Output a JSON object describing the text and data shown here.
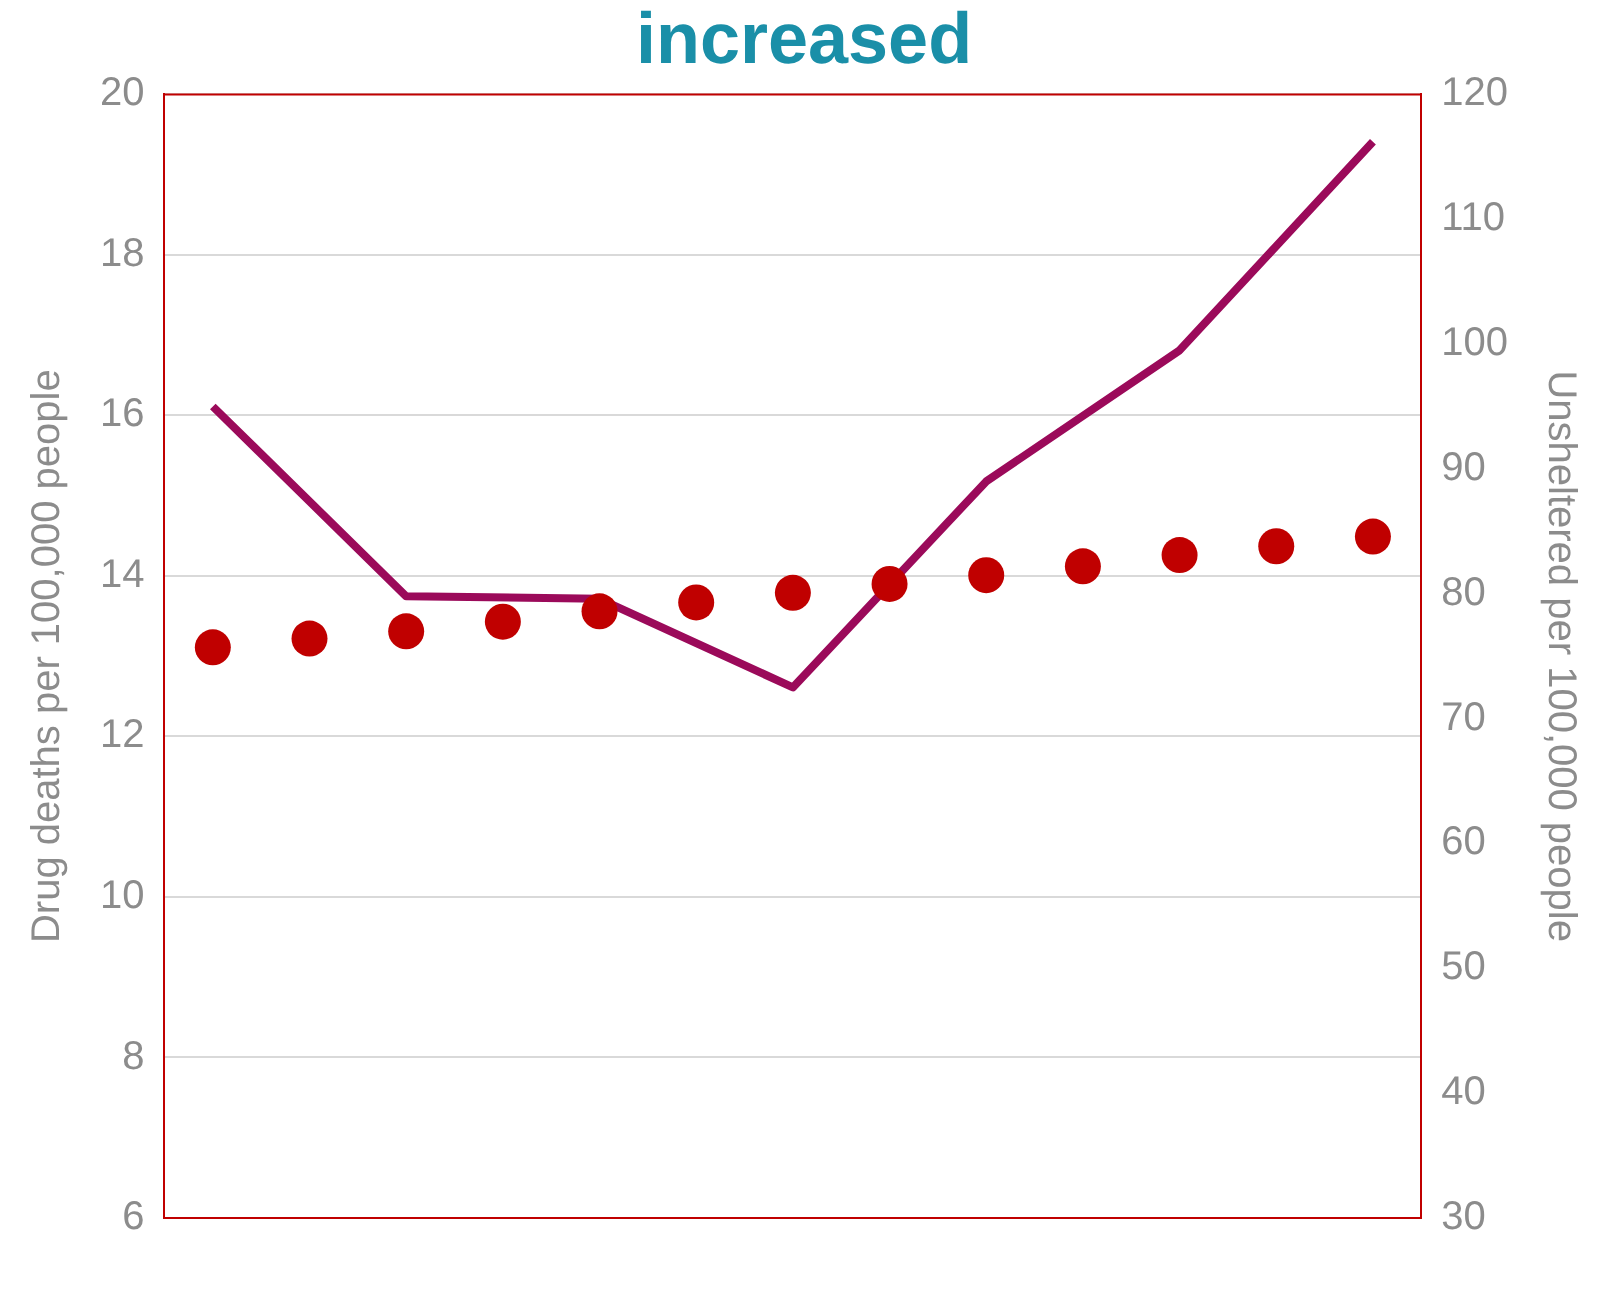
{
  "chart_data": {
    "type": "line",
    "title": "increased",
    "ylabel": "Drug deaths per 100,000 people",
    "y2label": "Unsheltered per 100,000 people",
    "categories": [
      null,
      null,
      null,
      null,
      null,
      null,
      null,
      null,
      null,
      null,
      null,
      null,
      null
    ],
    "series": [
      {
        "type": "scatter",
        "color": "#c00000",
        "marker": "circle",
        "values": [
          13.11,
          13.22,
          13.31,
          13.43,
          13.56,
          13.67,
          13.79,
          13.9,
          14.01,
          14.12,
          14.26,
          14.37,
          14.49
        ]
      },
      {
        "color": "#9b0a5a",
        "marker": "none",
        "axis": "y2",
        "values": [
          95,
          null,
          79.8,
          null,
          79.6,
          null,
          72.5,
          null,
          89,
          null,
          99.5,
          null,
          116.2
        ]
      }
    ],
    "ylim": [
      6,
      20
    ],
    "yticks": [
      6,
      8,
      10,
      12,
      14,
      16,
      18,
      20
    ],
    "y2lim": [
      30,
      120
    ],
    "y2ticks": [
      30,
      40,
      50,
      60,
      70,
      80,
      90,
      100,
      110,
      120
    ],
    "grid": "y",
    "legend": false
  }
}
